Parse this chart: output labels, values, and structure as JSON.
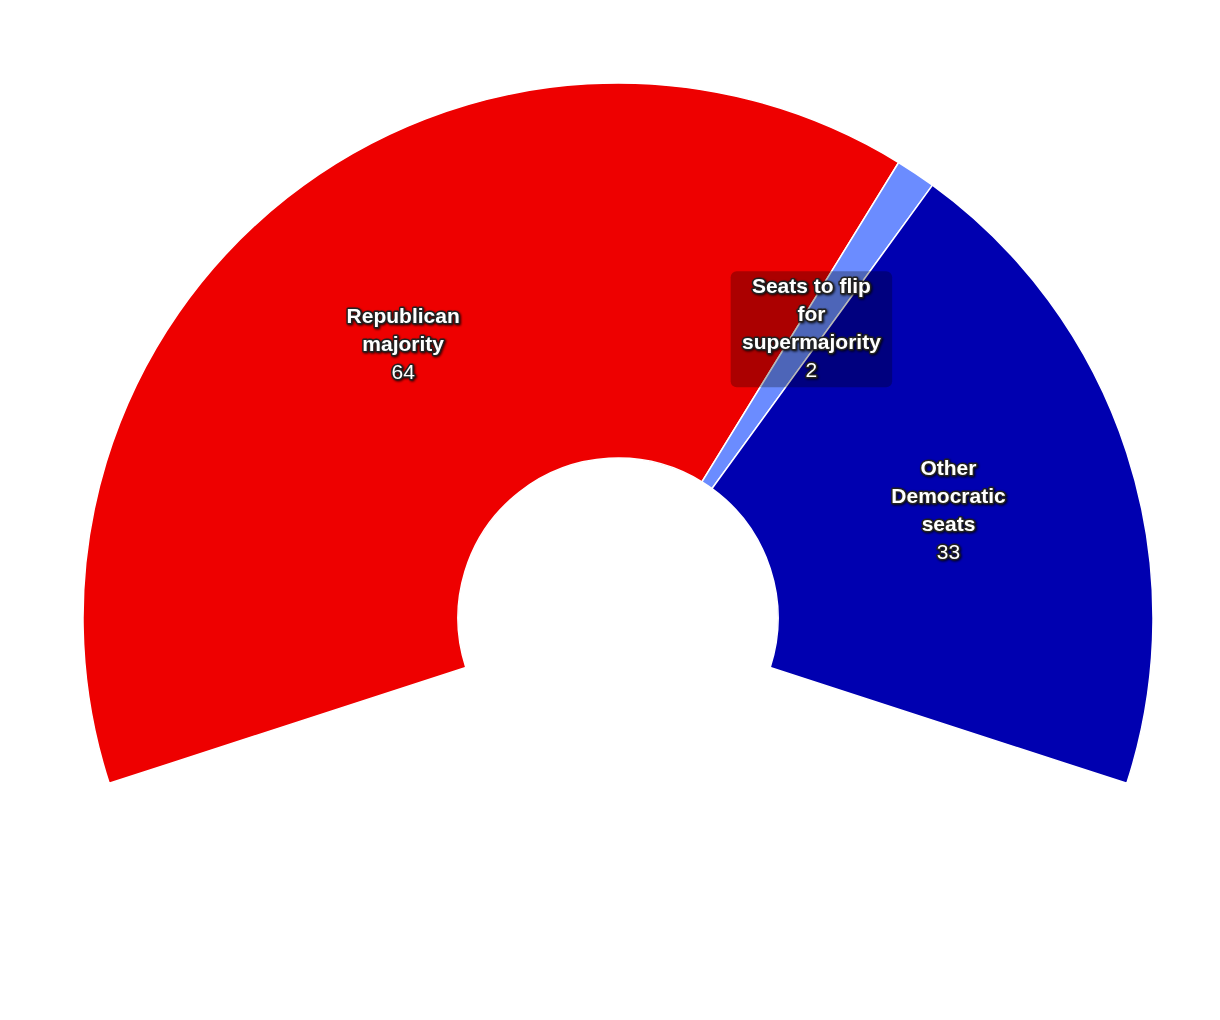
{
  "chart_data": {
    "type": "donut",
    "categories": [
      "Republican majority",
      "Seats to flip for supermajority",
      "Other Democratic seats"
    ],
    "values": [
      64,
      2,
      33
    ],
    "colors": [
      "#ee0000",
      "#6b8cff",
      "#0000b0"
    ],
    "data_labels": true
  }
}
